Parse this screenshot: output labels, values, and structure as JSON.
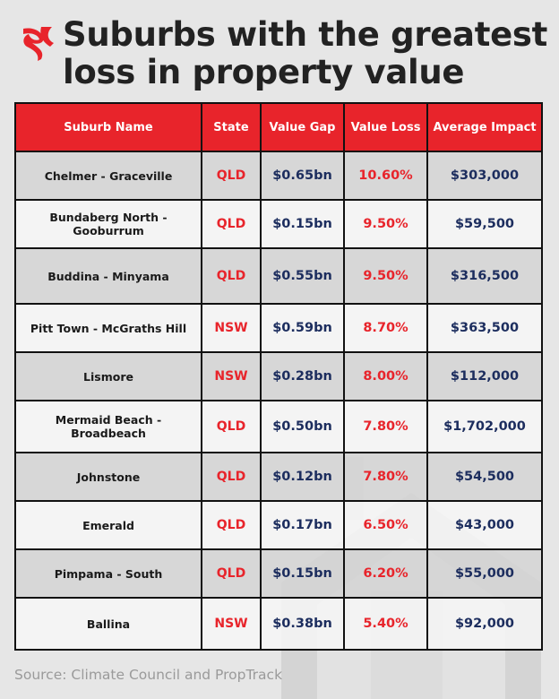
{
  "title": "Suburbs with the greatest loss in property value",
  "source": "Source: Climate Council and PropTrack",
  "logo": {
    "icon": "sbs-logo-icon",
    "color": "#e8242b"
  },
  "background_icon": "house-icon",
  "colors": {
    "header": "#e8242b",
    "red_text": "#e8242b",
    "navy_text": "#1c2d5e"
  },
  "chart_data": {
    "type": "table",
    "title": "Suburbs with the greatest loss in property value",
    "columns": [
      "Suburb Name",
      "State",
      "Value Gap",
      "Value Loss",
      "Average Impact"
    ],
    "rows": [
      [
        "Chelmer - Graceville",
        "QLD",
        "$0.65bn",
        "10.60%",
        "$303,000"
      ],
      [
        "Bundaberg North - Gooburrum",
        "QLD",
        "$0.15bn",
        "9.50%",
        "$59,500"
      ],
      [
        "Buddina - Minyama",
        "QLD",
        "$0.55bn",
        "9.50%",
        "$316,500"
      ],
      [
        "Pitt Town - McGraths Hill",
        "NSW",
        "$0.59bn",
        "8.70%",
        "$363,500"
      ],
      [
        "Lismore",
        "NSW",
        "$0.28bn",
        "8.00%",
        "$112,000"
      ],
      [
        "Mermaid Beach - Broadbeach",
        "QLD",
        "$0.50bn",
        "7.80%",
        "$1,702,000"
      ],
      [
        "Johnstone",
        "QLD",
        "$0.12bn",
        "7.80%",
        "$54,500"
      ],
      [
        "Emerald",
        "QLD",
        "$0.17bn",
        "6.50%",
        "$43,000"
      ],
      [
        "Pimpama - South",
        "QLD",
        "$0.15bn",
        "6.20%",
        "$55,000"
      ],
      [
        "Ballina",
        "NSW",
        "$0.38bn",
        "5.40%",
        "$92,000"
      ]
    ]
  }
}
